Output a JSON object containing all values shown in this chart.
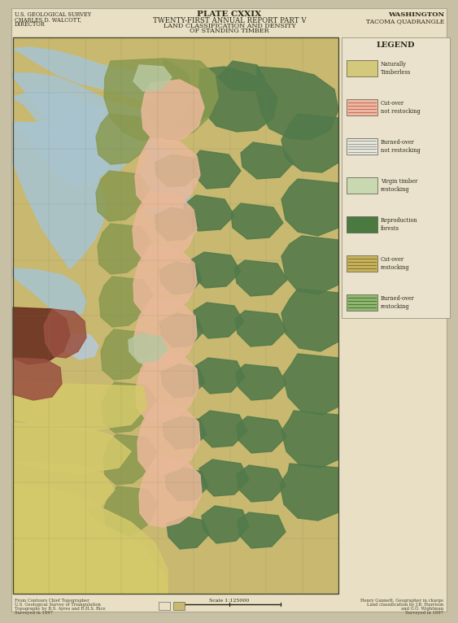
{
  "bg_outer": "#c8c0a4",
  "bg_page": "#e8dfc4",
  "bg_legend": "#eae2cc",
  "title_lines": [
    "PLATE CXXIX",
    "TWENTY-FIRST ANNUAL REPORT PART V",
    "LAND CLASSIFICATION AND DENSITY",
    "OF STANDING TIMBER"
  ],
  "top_left_lines": [
    "U.S. GEOLOGICAL SURVEY",
    "CHARLES D. WALCOTT,",
    "DIRECTOR"
  ],
  "top_right_lines": [
    "WASHINGTON",
    "TACOMA QUADRANGLE"
  ],
  "legend_title": "LEGEND",
  "legend_items": [
    {
      "label": "Naturally\nTimberless",
      "fc": "#d4c97a",
      "hatch": null
    },
    {
      "label": "Cut-over\nnot restocking",
      "fc": "#f0b8a0",
      "hatch": "pink_lines"
    },
    {
      "label": "Burned-over\nnot restocking",
      "fc": "#e8e8e0",
      "hatch": "white_lines"
    },
    {
      "label": "Virgin timber\nrestocking",
      "fc": "#c8d8b0",
      "hatch": null
    },
    {
      "label": "Reproduction\nforests",
      "fc": "#4a7a40",
      "hatch": null
    },
    {
      "label": "Cut-over\nrestocking",
      "fc": "#c8b460",
      "hatch": "olive_lines"
    },
    {
      "label": "Burned-over\nrestocking",
      "fc": "#90b870",
      "hatch": "green_lines"
    }
  ],
  "map_bg": "#c8b87a",
  "water_color": "#a8c4ce",
  "blue_lake": "#b8c8d4",
  "dark_forest": "#527a4a",
  "olive_forest": "#8a9a50",
  "yellow_farmland": "#d4c96a",
  "pink_cutover": "#e8b898",
  "urban_dark": "#6a3020",
  "urban_medium": "#9a5040"
}
